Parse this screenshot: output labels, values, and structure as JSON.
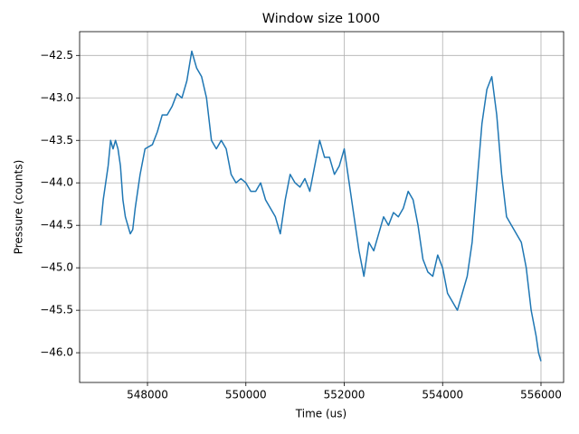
{
  "chart_data": {
    "type": "line",
    "title": "Window size 1000",
    "xlabel": "Time (us)",
    "ylabel": "Pressure (counts)",
    "x": [
      547050,
      547100,
      547150,
      547200,
      547250,
      547300,
      547350,
      547400,
      547450,
      547500,
      547550,
      547600,
      547650,
      547700,
      547750,
      547850,
      547950,
      548100,
      548200,
      548300,
      548400,
      548500,
      548600,
      548700,
      548800,
      548900,
      549000,
      549100,
      549200,
      549300,
      549400,
      549500,
      549600,
      549700,
      549800,
      549900,
      550000,
      550100,
      550200,
      550300,
      550400,
      550500,
      550600,
      550700,
      550800,
      550900,
      551000,
      551100,
      551200,
      551300,
      551400,
      551500,
      551600,
      551700,
      551800,
      551900,
      552000,
      552100,
      552200,
      552300,
      552400,
      552500,
      552600,
      552700,
      552800,
      552900,
      553000,
      553100,
      553200,
      553300,
      553400,
      553500,
      553600,
      553700,
      553800,
      553900,
      554000,
      554100,
      554200,
      554300,
      554400,
      554500,
      554600,
      554700,
      554800,
      554900,
      555000,
      555100,
      555200,
      555300,
      555400,
      555500,
      555600,
      555700,
      555800,
      555900,
      555950,
      556000
    ],
    "values": [
      -44.5,
      -44.2,
      -44.0,
      -43.8,
      -43.5,
      -43.6,
      -43.5,
      -43.6,
      -43.8,
      -44.2,
      -44.4,
      -44.5,
      -44.6,
      -44.55,
      -44.3,
      -43.9,
      -43.6,
      -43.55,
      -43.4,
      -43.2,
      -43.2,
      -43.1,
      -42.95,
      -43.0,
      -42.8,
      -42.45,
      -42.65,
      -42.75,
      -43.0,
      -43.5,
      -43.6,
      -43.5,
      -43.6,
      -43.9,
      -44.0,
      -43.95,
      -44.0,
      -44.1,
      -44.1,
      -44.0,
      -44.2,
      -44.3,
      -44.4,
      -44.6,
      -44.2,
      -43.9,
      -44.0,
      -44.05,
      -43.95,
      -44.1,
      -43.8,
      -43.5,
      -43.7,
      -43.7,
      -43.9,
      -43.8,
      -43.6,
      -44.0,
      -44.4,
      -44.8,
      -45.1,
      -44.7,
      -44.8,
      -44.6,
      -44.4,
      -44.5,
      -44.35,
      -44.4,
      -44.3,
      -44.1,
      -44.2,
      -44.5,
      -44.9,
      -45.05,
      -45.1,
      -44.85,
      -45.0,
      -45.3,
      -45.4,
      -45.5,
      -45.3,
      -45.1,
      -44.7,
      -44.0,
      -43.3,
      -42.9,
      -42.75,
      -43.2,
      -43.9,
      -44.4,
      -44.5,
      -44.6,
      -44.7,
      -45.0,
      -45.5,
      -45.8,
      -46.0,
      -46.1
    ],
    "color": "#1f77b4",
    "xlim": [
      546620,
      556460
    ],
    "ylim": [
      -46.35,
      -42.22
    ],
    "xticks": [
      548000,
      550000,
      552000,
      554000,
      556000
    ],
    "yticks": [
      {
        "value": -42.5,
        "label": "−42.5"
      },
      {
        "value": -43.0,
        "label": "−43.0"
      },
      {
        "value": -43.5,
        "label": "−43.5"
      },
      {
        "value": -44.0,
        "label": "−44.0"
      },
      {
        "value": -44.5,
        "label": "−44.5"
      },
      {
        "value": -45.0,
        "label": "−45.0"
      },
      {
        "value": -45.5,
        "label": "−45.5"
      },
      {
        "value": -46.0,
        "label": "−46.0"
      }
    ],
    "grid": true
  }
}
